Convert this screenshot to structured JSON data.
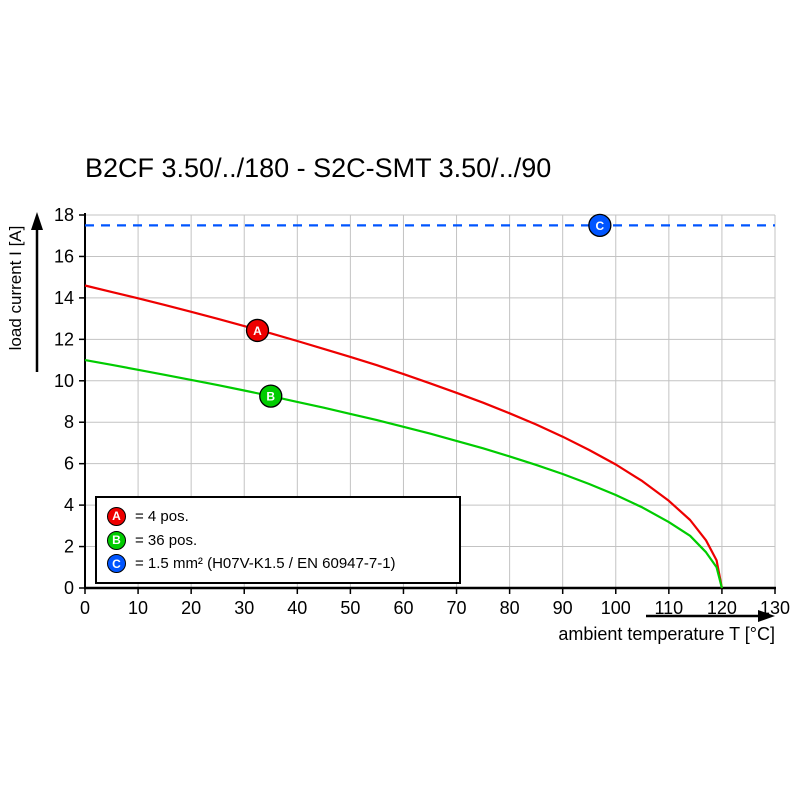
{
  "title": "B2CF 3.50/../180 - S2C-SMT 3.50/../90",
  "axes": {
    "x_label": "ambient temperature T [°C]",
    "y_label": "load current I [A]",
    "x_ticks": [
      0,
      10,
      20,
      30,
      40,
      50,
      60,
      70,
      80,
      90,
      100,
      110,
      120,
      130
    ],
    "y_ticks": [
      0,
      2,
      4,
      6,
      8,
      10,
      12,
      14,
      16,
      18
    ]
  },
  "legend": {
    "items": [
      {
        "marker": "A",
        "color": "#ee0000",
        "label": "= 4 pos."
      },
      {
        "marker": "B",
        "color": "#00cc00",
        "label": "= 36 pos."
      },
      {
        "marker": "C",
        "color": "#0055ff",
        "label": "= 1.5 mm² (H07V-K1.5 / EN 60947-7-1)"
      }
    ]
  },
  "chart_data": {
    "type": "line",
    "title": "B2CF 3.50/../180 - S2C-SMT 3.50/../90",
    "xlabel": "ambient temperature T [°C]",
    "ylabel": "load current I [A]",
    "xlim": [
      0,
      130
    ],
    "ylim": [
      0,
      18
    ],
    "grid": true,
    "legend_position": "bottom-left",
    "series": [
      {
        "name": "A",
        "label": "4 pos.",
        "color": "#ee0000",
        "style": "solid",
        "marker_at": {
          "x": 32.5,
          "y": 12.43
        },
        "points": [
          [
            0,
            14.6
          ],
          [
            5,
            14.29
          ],
          [
            10,
            13.98
          ],
          [
            15,
            13.66
          ],
          [
            20,
            13.33
          ],
          [
            25,
            12.99
          ],
          [
            30,
            12.64
          ],
          [
            35,
            12.29
          ],
          [
            40,
            11.92
          ],
          [
            45,
            11.54
          ],
          [
            50,
            11.15
          ],
          [
            55,
            10.75
          ],
          [
            60,
            10.32
          ],
          [
            65,
            9.88
          ],
          [
            70,
            9.42
          ],
          [
            75,
            8.94
          ],
          [
            80,
            8.43
          ],
          [
            85,
            7.89
          ],
          [
            90,
            7.3
          ],
          [
            95,
            6.66
          ],
          [
            100,
            5.96
          ],
          [
            105,
            5.16
          ],
          [
            110,
            4.21
          ],
          [
            114,
            3.28
          ],
          [
            117,
            2.3
          ],
          [
            119,
            1.33
          ],
          [
            120,
            0
          ]
        ]
      },
      {
        "name": "B",
        "label": "36 pos.",
        "color": "#00cc00",
        "style": "solid",
        "marker_at": {
          "x": 35,
          "y": 9.26
        },
        "points": [
          [
            0,
            11
          ],
          [
            5,
            10.77
          ],
          [
            10,
            10.53
          ],
          [
            15,
            10.29
          ],
          [
            20,
            10.04
          ],
          [
            25,
            9.79
          ],
          [
            30,
            9.53
          ],
          [
            35,
            9.26
          ],
          [
            40,
            8.98
          ],
          [
            45,
            8.7
          ],
          [
            50,
            8.4
          ],
          [
            55,
            8.1
          ],
          [
            60,
            7.78
          ],
          [
            65,
            7.45
          ],
          [
            70,
            7.1
          ],
          [
            75,
            6.74
          ],
          [
            80,
            6.35
          ],
          [
            85,
            5.94
          ],
          [
            90,
            5.5
          ],
          [
            95,
            5.02
          ],
          [
            100,
            4.49
          ],
          [
            105,
            3.89
          ],
          [
            110,
            3.18
          ],
          [
            114,
            2.52
          ],
          [
            117,
            1.73
          ],
          [
            119,
            1
          ],
          [
            120,
            0
          ]
        ]
      },
      {
        "name": "C",
        "label": "1.5 mm² (H07V-K1.5 / EN 60947-7-1)",
        "color": "#0055ff",
        "style": "dashed",
        "marker_at": {
          "x": 97,
          "y": 17.5
        },
        "points": [
          [
            0,
            17.5
          ],
          [
            130,
            17.5
          ]
        ]
      }
    ]
  }
}
